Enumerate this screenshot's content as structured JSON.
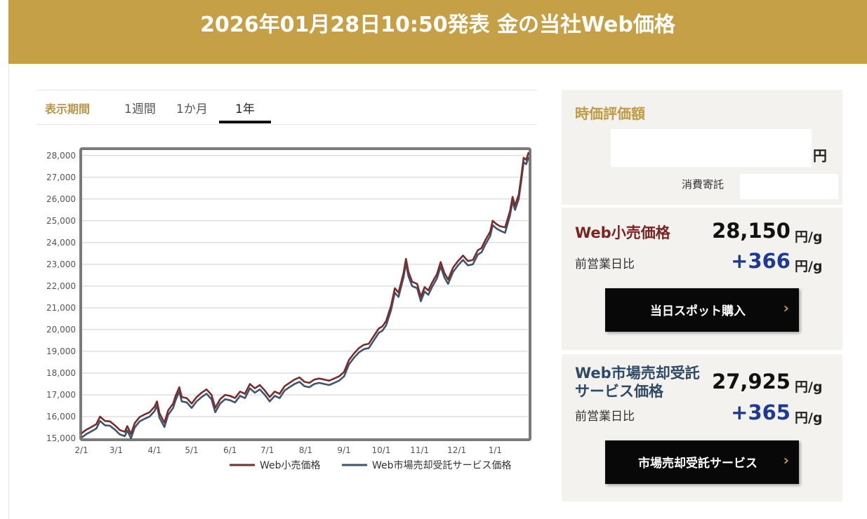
{
  "header": {
    "title": "2026年01月28日10:50発表 金の当社Web価格"
  },
  "period": {
    "label": "表示期間",
    "tabs": [
      {
        "label": "1週間",
        "active": false
      },
      {
        "label": "1か月",
        "active": false
      },
      {
        "label": "1年",
        "active": true
      }
    ]
  },
  "chart_data": {
    "type": "line",
    "x_ticks": [
      "2/1",
      "3/1",
      "4/1",
      "5/1",
      "6/1",
      "7/1",
      "8/1",
      "9/1",
      "10/1",
      "11/1",
      "12/1",
      "1/1"
    ],
    "y_ticks": [
      "28,000",
      "27,000",
      "26,000",
      "25,000",
      "24,000",
      "23,000",
      "22,000",
      "21,000",
      "20,000",
      "19,000",
      "18,000",
      "17,000",
      "16,000",
      "15,000"
    ],
    "ylim": [
      15000,
      28250
    ],
    "grid": true,
    "legend_position": "bottom-right",
    "series": [
      {
        "name": "Web小売価格",
        "color": "#7b2d2d",
        "points": [
          [
            "2025-02-01",
            15230
          ],
          [
            "2025-02-05",
            15400
          ],
          [
            "2025-02-09",
            15520
          ],
          [
            "2025-02-13",
            15650
          ],
          [
            "2025-02-16",
            16000
          ],
          [
            "2025-02-20",
            15800
          ],
          [
            "2025-02-24",
            15780
          ],
          [
            "2025-02-28",
            15600
          ],
          [
            "2025-03-04",
            15380
          ],
          [
            "2025-03-08",
            15300
          ],
          [
            "2025-03-10",
            15560
          ],
          [
            "2025-03-13",
            15200
          ],
          [
            "2025-03-16",
            15700
          ],
          [
            "2025-03-20",
            15980
          ],
          [
            "2025-03-24",
            16100
          ],
          [
            "2025-03-28",
            16200
          ],
          [
            "2025-04-01",
            16450
          ],
          [
            "2025-04-03",
            16700
          ],
          [
            "2025-04-05",
            16150
          ],
          [
            "2025-04-09",
            15720
          ],
          [
            "2025-04-12",
            16280
          ],
          [
            "2025-04-16",
            16600
          ],
          [
            "2025-04-18",
            16950
          ],
          [
            "2025-04-21",
            17350
          ],
          [
            "2025-04-23",
            16900
          ],
          [
            "2025-04-27",
            16850
          ],
          [
            "2025-05-01",
            16600
          ],
          [
            "2025-05-05",
            16900
          ],
          [
            "2025-05-09",
            17100
          ],
          [
            "2025-05-13",
            17250
          ],
          [
            "2025-05-17",
            17000
          ],
          [
            "2025-05-20",
            16400
          ],
          [
            "2025-05-24",
            16800
          ],
          [
            "2025-05-28",
            17000
          ],
          [
            "2025-06-01",
            16950
          ],
          [
            "2025-06-05",
            16850
          ],
          [
            "2025-06-09",
            17150
          ],
          [
            "2025-06-13",
            17050
          ],
          [
            "2025-06-17",
            17500
          ],
          [
            "2025-06-21",
            17300
          ],
          [
            "2025-06-25",
            17450
          ],
          [
            "2025-06-29",
            17200
          ],
          [
            "2025-07-03",
            16900
          ],
          [
            "2025-07-07",
            17150
          ],
          [
            "2025-07-11",
            17050
          ],
          [
            "2025-07-15",
            17400
          ],
          [
            "2025-07-19",
            17550
          ],
          [
            "2025-07-23",
            17700
          ],
          [
            "2025-07-27",
            17800
          ],
          [
            "2025-07-31",
            17600
          ],
          [
            "2025-08-04",
            17550
          ],
          [
            "2025-08-08",
            17700
          ],
          [
            "2025-08-12",
            17750
          ],
          [
            "2025-08-16",
            17700
          ],
          [
            "2025-08-20",
            17650
          ],
          [
            "2025-08-24",
            17750
          ],
          [
            "2025-08-28",
            17850
          ],
          [
            "2025-09-01",
            18050
          ],
          [
            "2025-09-05",
            18600
          ],
          [
            "2025-09-09",
            18900
          ],
          [
            "2025-09-13",
            19150
          ],
          [
            "2025-09-17",
            19300
          ],
          [
            "2025-09-21",
            19350
          ],
          [
            "2025-09-25",
            19700
          ],
          [
            "2025-09-29",
            20050
          ],
          [
            "2025-10-02",
            20150
          ],
          [
            "2025-10-05",
            20400
          ],
          [
            "2025-10-09",
            21100
          ],
          [
            "2025-10-12",
            21900
          ],
          [
            "2025-10-15",
            21700
          ],
          [
            "2025-10-19",
            22600
          ],
          [
            "2025-10-21",
            23250
          ],
          [
            "2025-10-23",
            22650
          ],
          [
            "2025-10-26",
            22200
          ],
          [
            "2025-10-30",
            22100
          ],
          [
            "2025-11-02",
            21500
          ],
          [
            "2025-11-05",
            21950
          ],
          [
            "2025-11-08",
            21800
          ],
          [
            "2025-11-11",
            22150
          ],
          [
            "2025-11-15",
            22550
          ],
          [
            "2025-11-18",
            23100
          ],
          [
            "2025-11-21",
            22600
          ],
          [
            "2025-11-24",
            22300
          ],
          [
            "2025-11-28",
            22850
          ],
          [
            "2025-12-02",
            23150
          ],
          [
            "2025-12-06",
            23400
          ],
          [
            "2025-12-10",
            23150
          ],
          [
            "2025-12-14",
            23200
          ],
          [
            "2025-12-18",
            23650
          ],
          [
            "2025-12-21",
            23750
          ],
          [
            "2025-12-24",
            24100
          ],
          [
            "2025-12-28",
            24500
          ],
          [
            "2025-12-30",
            25000
          ],
          [
            "2026-01-02",
            24850
          ],
          [
            "2026-01-05",
            24750
          ],
          [
            "2026-01-09",
            24700
          ],
          [
            "2026-01-13",
            25450
          ],
          [
            "2026-01-15",
            26100
          ],
          [
            "2026-01-17",
            25700
          ],
          [
            "2026-01-20",
            26200
          ],
          [
            "2026-01-22",
            27000
          ],
          [
            "2026-01-24",
            27900
          ],
          [
            "2026-01-26",
            27800
          ],
          [
            "2026-01-28",
            28150
          ]
        ]
      },
      {
        "name": "Web市場売却受託サービス価格",
        "color": "#3d5570",
        "points": [
          [
            "2025-02-01",
            15030
          ],
          [
            "2025-02-05",
            15200
          ],
          [
            "2025-02-09",
            15320
          ],
          [
            "2025-02-13",
            15450
          ],
          [
            "2025-02-16",
            15800
          ],
          [
            "2025-02-20",
            15600
          ],
          [
            "2025-02-24",
            15580
          ],
          [
            "2025-02-28",
            15400
          ],
          [
            "2025-03-04",
            15180
          ],
          [
            "2025-03-08",
            15100
          ],
          [
            "2025-03-10",
            15360
          ],
          [
            "2025-03-13",
            15000
          ],
          [
            "2025-03-16",
            15500
          ],
          [
            "2025-03-20",
            15780
          ],
          [
            "2025-03-24",
            15900
          ],
          [
            "2025-03-28",
            16000
          ],
          [
            "2025-04-01",
            16250
          ],
          [
            "2025-04-03",
            16500
          ],
          [
            "2025-04-05",
            15950
          ],
          [
            "2025-04-09",
            15520
          ],
          [
            "2025-04-12",
            16080
          ],
          [
            "2025-04-16",
            16400
          ],
          [
            "2025-04-18",
            16750
          ],
          [
            "2025-04-21",
            17150
          ],
          [
            "2025-04-23",
            16700
          ],
          [
            "2025-04-27",
            16650
          ],
          [
            "2025-05-01",
            16400
          ],
          [
            "2025-05-05",
            16700
          ],
          [
            "2025-05-09",
            16900
          ],
          [
            "2025-05-13",
            17050
          ],
          [
            "2025-05-17",
            16800
          ],
          [
            "2025-05-20",
            16200
          ],
          [
            "2025-05-24",
            16600
          ],
          [
            "2025-05-28",
            16800
          ],
          [
            "2025-06-01",
            16750
          ],
          [
            "2025-06-05",
            16650
          ],
          [
            "2025-06-09",
            16950
          ],
          [
            "2025-06-13",
            16850
          ],
          [
            "2025-06-17",
            17300
          ],
          [
            "2025-06-21",
            17100
          ],
          [
            "2025-06-25",
            17250
          ],
          [
            "2025-06-29",
            17000
          ],
          [
            "2025-07-03",
            16700
          ],
          [
            "2025-07-07",
            16950
          ],
          [
            "2025-07-11",
            16850
          ],
          [
            "2025-07-15",
            17200
          ],
          [
            "2025-07-19",
            17350
          ],
          [
            "2025-07-23",
            17500
          ],
          [
            "2025-07-27",
            17600
          ],
          [
            "2025-07-31",
            17400
          ],
          [
            "2025-08-04",
            17350
          ],
          [
            "2025-08-08",
            17500
          ],
          [
            "2025-08-12",
            17550
          ],
          [
            "2025-08-16",
            17500
          ],
          [
            "2025-08-20",
            17450
          ],
          [
            "2025-08-24",
            17550
          ],
          [
            "2025-08-28",
            17650
          ],
          [
            "2025-09-01",
            17850
          ],
          [
            "2025-09-05",
            18400
          ],
          [
            "2025-09-09",
            18700
          ],
          [
            "2025-09-13",
            18950
          ],
          [
            "2025-09-17",
            19100
          ],
          [
            "2025-09-21",
            19150
          ],
          [
            "2025-09-25",
            19500
          ],
          [
            "2025-09-29",
            19850
          ],
          [
            "2025-10-02",
            19950
          ],
          [
            "2025-10-05",
            20200
          ],
          [
            "2025-10-09",
            20900
          ],
          [
            "2025-10-12",
            21700
          ],
          [
            "2025-10-15",
            21500
          ],
          [
            "2025-10-19",
            22400
          ],
          [
            "2025-10-21",
            23050
          ],
          [
            "2025-10-23",
            22450
          ],
          [
            "2025-10-26",
            22000
          ],
          [
            "2025-10-30",
            21900
          ],
          [
            "2025-11-02",
            21300
          ],
          [
            "2025-11-05",
            21750
          ],
          [
            "2025-11-08",
            21600
          ],
          [
            "2025-11-11",
            21950
          ],
          [
            "2025-11-15",
            22350
          ],
          [
            "2025-11-18",
            22900
          ],
          [
            "2025-11-21",
            22400
          ],
          [
            "2025-11-24",
            22100
          ],
          [
            "2025-11-28",
            22650
          ],
          [
            "2025-12-02",
            22950
          ],
          [
            "2025-12-06",
            23200
          ],
          [
            "2025-12-10",
            22950
          ],
          [
            "2025-12-14",
            23000
          ],
          [
            "2025-12-18",
            23450
          ],
          [
            "2025-12-21",
            23550
          ],
          [
            "2025-12-24",
            23900
          ],
          [
            "2025-12-28",
            24300
          ],
          [
            "2025-12-30",
            24800
          ],
          [
            "2026-01-02",
            24650
          ],
          [
            "2026-01-05",
            24550
          ],
          [
            "2026-01-09",
            24450
          ],
          [
            "2026-01-13",
            25250
          ],
          [
            "2026-01-15",
            25900
          ],
          [
            "2026-01-17",
            25500
          ],
          [
            "2026-01-20",
            26000
          ],
          [
            "2026-01-22",
            26800
          ],
          [
            "2026-01-24",
            27700
          ],
          [
            "2026-01-26",
            27600
          ],
          [
            "2026-01-28",
            27925
          ]
        ]
      }
    ]
  },
  "valuation": {
    "title": "時価評価額",
    "amount": "",
    "unit": "円",
    "tax_label": "消費寄託",
    "tax_value": ""
  },
  "retail": {
    "name": "Web小売価格",
    "name_color": "#7b2323",
    "price": "28,150",
    "unit": "円/g",
    "diff_label": "前営業日比",
    "diff": "+366",
    "diff_unit": "円/g",
    "button_label": "当日スポット購入",
    "chevron": "›"
  },
  "market": {
    "name_line1": "Web市場売却受託",
    "name_line2": "サービス価格",
    "name_color": "#2e4a68",
    "price": "27,925",
    "unit": "円/g",
    "diff_label": "前営業日比",
    "diff": "+365",
    "diff_unit": "円/g",
    "button_label": "市場売却受託サービス",
    "chevron": "›"
  }
}
